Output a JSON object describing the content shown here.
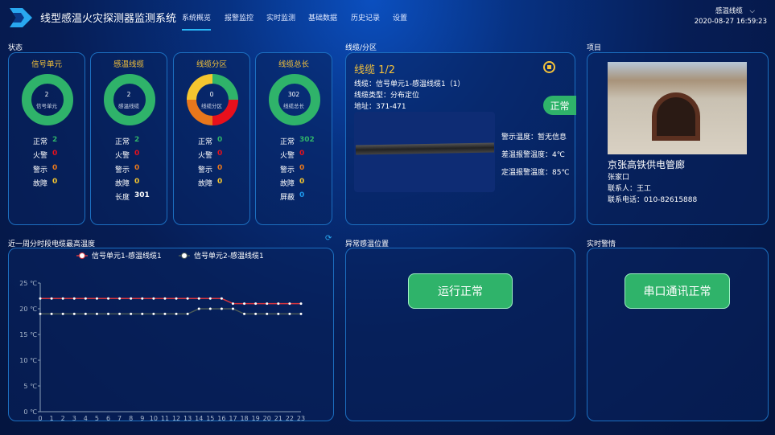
{
  "header": {
    "title": "线型感温火灾探测器监测系统",
    "nav": [
      "系统概览",
      "报警监控",
      "实时监测",
      "基础数据",
      "历史记录",
      "设置"
    ],
    "active_nav": 0,
    "user_menu": "感温线缆",
    "datetime": "2020-08-27 16:59:23"
  },
  "status": {
    "section_title": "状态",
    "colors": {
      "normal": "#2fb36a",
      "fire": "#e8101c",
      "warning": "#e8771c",
      "fault": "#f5c62f",
      "shield": "#1e9bf0"
    },
    "cards": [
      {
        "title": "信号单元",
        "center_value": "2",
        "center_label": "信号单元",
        "rows": [
          {
            "label": "正常",
            "value": "2",
            "color": "#2fb36a"
          },
          {
            "label": "火警",
            "value": "0",
            "color": "#e8101c"
          },
          {
            "label": "警示",
            "value": "0",
            "color": "#e8771c"
          },
          {
            "label": "故障",
            "value": "0",
            "color": "#f5c62f"
          }
        ]
      },
      {
        "title": "感温线缆",
        "center_value": "2",
        "center_label": "感温线缆",
        "rows": [
          {
            "label": "正常",
            "value": "2",
            "color": "#2fb36a"
          },
          {
            "label": "火警",
            "value": "0",
            "color": "#e8101c"
          },
          {
            "label": "警示",
            "value": "0",
            "color": "#e8771c"
          },
          {
            "label": "故障",
            "value": "0",
            "color": "#f5c62f"
          },
          {
            "label": "长度",
            "value": "301",
            "color": "#ffffff"
          }
        ]
      },
      {
        "title": "线缆分区",
        "center_value": "0",
        "center_label": "线缆分区",
        "rows": [
          {
            "label": "正常",
            "value": "0",
            "color": "#2fb36a"
          },
          {
            "label": "火警",
            "value": "0",
            "color": "#e8101c"
          },
          {
            "label": "警示",
            "value": "0",
            "color": "#e8771c"
          },
          {
            "label": "故障",
            "value": "0",
            "color": "#f5c62f"
          }
        ]
      },
      {
        "title": "线缆总长",
        "center_value": "302",
        "center_label": "线缆总长",
        "rows": [
          {
            "label": "正常",
            "value": "302",
            "color": "#2fb36a"
          },
          {
            "label": "火警",
            "value": "0",
            "color": "#e8101c"
          },
          {
            "label": "警示",
            "value": "0",
            "color": "#e8771c"
          },
          {
            "label": "故障",
            "value": "0",
            "color": "#f5c62f"
          },
          {
            "label": "屏蔽",
            "value": "0",
            "color": "#1e9bf0"
          }
        ]
      }
    ]
  },
  "cable": {
    "section_title": "线缆/分区",
    "title": "线缆 1/2",
    "cable": "线缆：信号单元1-感温线缆1（1）",
    "type": "线缆类型：分布定位",
    "address": "地址：371-471",
    "status": "正常",
    "warn_temp": "警示温度：暂无信息",
    "diff_temp": "差温报警温度：4℃",
    "fixed_temp": "定温报警温度：85℃"
  },
  "project": {
    "section_title": "项目",
    "name": "京张高铁供电管廊",
    "location": "张家口",
    "contact": "联系人：王工",
    "phone": "联系电话：010-82615888"
  },
  "abnormal": {
    "section_title": "异常感温位置",
    "button": "运行正常"
  },
  "alarm": {
    "section_title": "实时警情",
    "button": "串口通讯正常"
  },
  "chart_data": {
    "type": "line",
    "title": "近一周分时段电缆最高温度",
    "x": [
      0,
      1,
      2,
      3,
      4,
      5,
      6,
      7,
      8,
      9,
      10,
      11,
      12,
      13,
      14,
      15,
      16,
      17,
      18,
      19,
      20,
      21,
      22,
      23
    ],
    "y_ticks": [
      "0 ℃",
      "5 ℃",
      "10 ℃",
      "15 ℃",
      "20 ℃",
      "25 ℃"
    ],
    "ylim": [
      0,
      25
    ],
    "legend": "top",
    "series": [
      {
        "name": "信号单元1-感温线缆1",
        "color": "#d9363e",
        "values": [
          22,
          22,
          22,
          22,
          22,
          22,
          22,
          22,
          22,
          22,
          22,
          22,
          22,
          22,
          22,
          22,
          22,
          21,
          21,
          21,
          21,
          21,
          21,
          21
        ]
      },
      {
        "name": "信号单元2-感温线缆1",
        "color": "#4a5a58",
        "values": [
          19,
          19,
          19,
          19,
          19,
          19,
          19,
          19,
          19,
          19,
          19,
          19,
          19,
          19,
          20,
          20,
          20,
          20,
          19,
          19,
          19,
          19,
          19,
          19
        ]
      }
    ]
  }
}
